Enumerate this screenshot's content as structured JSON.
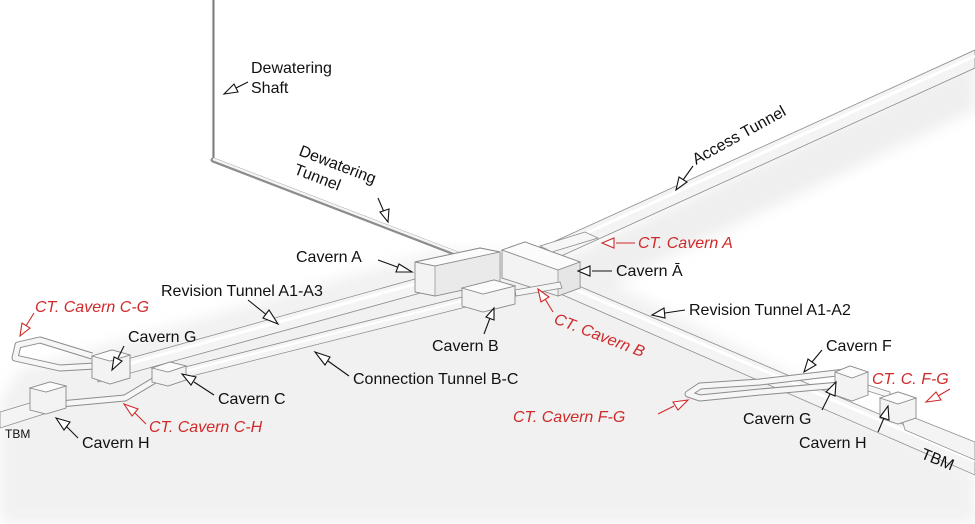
{
  "labels": {
    "dewatering_shaft": [
      "Dewatering",
      "Shaft"
    ],
    "dewatering_tunnel": [
      "Dewatering",
      "Tunnel"
    ],
    "access_tunnel": "Access Tunnel",
    "cavern_a": "Cavern A",
    "ct_cavern_a": "CT. Cavern A",
    "cavern_a_bar": "Cavern Ā",
    "revision_tunnel_a1_a3": "Revision Tunnel A1-A3",
    "revision_tunnel_a1_a2": "Revision Tunnel A1-A2",
    "ct_cavern_c_g": "CT. Cavern C-G",
    "cavern_g_left": "Cavern G",
    "cavern_b": "Cavern B",
    "ct_cavern_b": "CT. Cavern B",
    "cavern_c": "Cavern C",
    "connection_tunnel_b_c": "Connection Tunnel B-C",
    "ct_cavern_c_h": "CT. Cavern C-H",
    "cavern_h_left": "Cavern H",
    "tbm_left": "TBM",
    "cavern_f": "Cavern F",
    "ct_c_f_g": "CT. C. F-G",
    "ct_cavern_f_g": "CT. Cavern F-G",
    "cavern_g_right": "Cavern G",
    "cavern_h_right": "Cavern H",
    "tbm_right": "TBM"
  },
  "colors": {
    "label_black": "#111111",
    "label_red": "#cf2a2a",
    "tunnel_fill": "#f4f4f4",
    "tunnel_edge": "#8c8c8c",
    "shadow": "#c9c9c9",
    "background": "#ffffff"
  }
}
